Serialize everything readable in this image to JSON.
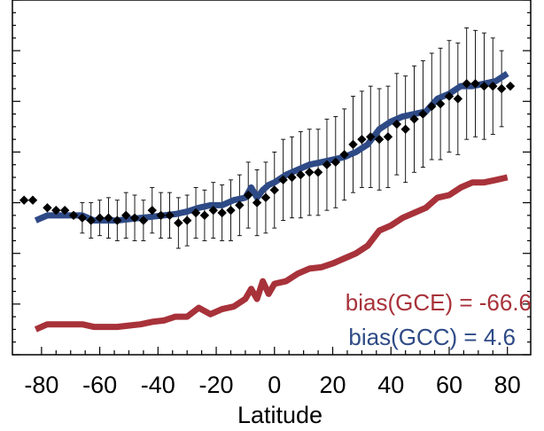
{
  "chart_data": {
    "type": "line",
    "xlabel": "Latitude",
    "ylabel": "",
    "xlim": [
      -90,
      88
    ],
    "ylim": [
      0,
      14
    ],
    "x_ticks": [
      -80,
      -60,
      -40,
      -20,
      0,
      20,
      40,
      60,
      80
    ],
    "grid": false,
    "annotations": [
      {
        "text": "bias(GCE) = -66.6",
        "color": "#a8323a"
      },
      {
        "text": "bias(GCC) = 4.6",
        "color": "#2e4a86"
      }
    ],
    "series": [
      {
        "kind": "observations",
        "marker": "diamond",
        "color": "#000000",
        "x": [
          -86,
          -83,
          -78,
          -75,
          -72,
          -69,
          -66,
          -63,
          -60,
          -57,
          -54,
          -51,
          -48,
          -45,
          -42,
          -39,
          -36,
          -33,
          -30,
          -27,
          -24,
          -21,
          -18,
          -15,
          -12,
          -9,
          -6,
          -3,
          0,
          3,
          6,
          9,
          12,
          15,
          18,
          21,
          24,
          27,
          30,
          33,
          36,
          39,
          42,
          45,
          48,
          51,
          54,
          57,
          60,
          63,
          66,
          69,
          72,
          75,
          78,
          81
        ],
        "y": [
          6.1,
          6.1,
          5.8,
          5.7,
          5.7,
          5.5,
          5.4,
          5.3,
          5.4,
          5.4,
          5.3,
          5.5,
          5.4,
          5.3,
          5.7,
          5.5,
          5.5,
          5.2,
          5.3,
          5.6,
          5.5,
          5.7,
          5.6,
          5.7,
          5.9,
          6.3,
          6.0,
          6.2,
          6.5,
          6.9,
          7.0,
          7.1,
          7.2,
          7.2,
          7.5,
          7.6,
          7.9,
          8.3,
          8.5,
          8.6,
          8.5,
          8.6,
          9.1,
          8.9,
          9.3,
          9.5,
          9.8,
          9.9,
          10.2,
          10.1,
          10.7,
          10.7,
          10.6,
          10.6,
          10.5,
          10.6
        ],
        "err": [
          0,
          0,
          0,
          0,
          0,
          0,
          0.6,
          0.7,
          0.7,
          0.8,
          0.8,
          0.9,
          0.9,
          0.8,
          0.9,
          0.9,
          0.9,
          1.0,
          1.0,
          1.0,
          1.0,
          1.1,
          1.1,
          1.2,
          1.2,
          1.3,
          1.3,
          1.4,
          1.5,
          1.6,
          1.6,
          1.7,
          1.7,
          1.7,
          1.8,
          1.8,
          1.8,
          1.9,
          1.9,
          2.0,
          2.0,
          2.0,
          2.0,
          2.1,
          2.1,
          2.1,
          2.1,
          2.2,
          2.2,
          2.2,
          2.2,
          2.1,
          2.1,
          1.9,
          1.5,
          0
        ]
      },
      {
        "kind": "model",
        "color": "#2e4a86",
        "x": [
          -82,
          -78,
          -74,
          -70,
          -66,
          -62,
          -58,
          -54,
          -50,
          -46,
          -42,
          -38,
          -34,
          -30,
          -26,
          -22,
          -18,
          -14,
          -10,
          -8,
          -6,
          -4,
          -2,
          0,
          4,
          8,
          12,
          16,
          20,
          24,
          28,
          32,
          36,
          40,
          44,
          48,
          52,
          56,
          60,
          64,
          68,
          72,
          76,
          80
        ],
        "y": [
          5.3,
          5.5,
          5.5,
          5.5,
          5.5,
          5.3,
          5.3,
          5.3,
          5.35,
          5.4,
          5.45,
          5.5,
          5.55,
          5.65,
          5.8,
          5.9,
          5.9,
          6.1,
          6.2,
          6.6,
          6.2,
          6.5,
          6.7,
          6.8,
          7.1,
          7.3,
          7.5,
          7.6,
          7.7,
          7.8,
          8.0,
          8.3,
          8.9,
          9.2,
          9.4,
          9.5,
          9.6,
          10.1,
          10.3,
          10.6,
          10.6,
          10.7,
          10.8,
          11.1
        ]
      },
      {
        "kind": "model",
        "color": "#a8323a",
        "x": [
          -82,
          -78,
          -74,
          -70,
          -66,
          -62,
          -58,
          -54,
          -50,
          -46,
          -42,
          -38,
          -34,
          -30,
          -26,
          -22,
          -18,
          -14,
          -10,
          -8,
          -6,
          -4,
          -2,
          0,
          4,
          8,
          12,
          16,
          20,
          24,
          28,
          32,
          36,
          40,
          44,
          48,
          52,
          56,
          60,
          64,
          68,
          72,
          76,
          80
        ],
        "y": [
          1.0,
          1.2,
          1.2,
          1.2,
          1.2,
          1.1,
          1.1,
          1.1,
          1.15,
          1.2,
          1.3,
          1.35,
          1.5,
          1.5,
          1.85,
          1.6,
          1.8,
          1.9,
          2.2,
          2.6,
          2.2,
          2.9,
          2.4,
          2.8,
          2.9,
          3.2,
          3.4,
          3.45,
          3.6,
          3.8,
          4.0,
          4.3,
          4.9,
          5.1,
          5.4,
          5.6,
          5.8,
          6.2,
          6.3,
          6.6,
          6.8,
          6.8,
          6.9,
          7.0
        ]
      }
    ]
  }
}
